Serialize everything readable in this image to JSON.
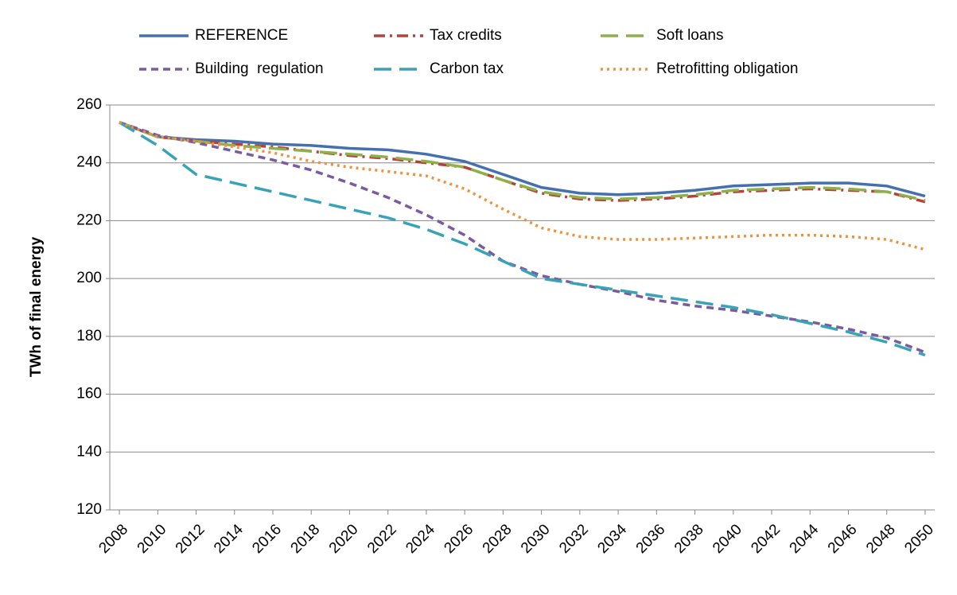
{
  "chart_data": {
    "type": "line",
    "y_label": "TWh of final energy",
    "x": [
      2008,
      2010,
      2012,
      2014,
      2016,
      2018,
      2020,
      2022,
      2024,
      2026,
      2028,
      2030,
      2032,
      2034,
      2036,
      2038,
      2040,
      2042,
      2044,
      2046,
      2048,
      2050
    ],
    "xlim": [
      2007.5,
      2050.5
    ],
    "xticks": [
      2008,
      2010,
      2012,
      2014,
      2016,
      2018,
      2020,
      2022,
      2024,
      2026,
      2028,
      2030,
      2032,
      2034,
      2036,
      2038,
      2040,
      2042,
      2044,
      2046,
      2048,
      2050
    ],
    "ylim": [
      120,
      260
    ],
    "yticks": [
      120,
      140,
      160,
      180,
      200,
      220,
      240,
      260
    ],
    "grid": true,
    "legend": "top",
    "series": [
      {
        "name": "REFERENCE",
        "color": "#4470b0",
        "style": "solid",
        "values": [
          254,
          249,
          248,
          247.5,
          246.5,
          246,
          245,
          244.5,
          243,
          240.5,
          236,
          231.5,
          229.5,
          229,
          229.5,
          230.5,
          232,
          232.5,
          233,
          233,
          232,
          228.5
        ]
      },
      {
        "name": "Tax credits",
        "color": "#b8403a",
        "style": "dashdot",
        "values": [
          254,
          249,
          247.5,
          246.5,
          245.5,
          244,
          242.5,
          241.5,
          240,
          238.5,
          234,
          229.5,
          227.5,
          227,
          227.5,
          228.5,
          230,
          230.5,
          231,
          230.5,
          230,
          226.5
        ]
      },
      {
        "name": "Soft loans",
        "color": "#8db04a",
        "style": "longdash",
        "values": [
          254,
          249,
          247.5,
          246,
          245,
          244,
          243,
          242,
          240.5,
          238.5,
          234,
          230,
          228,
          227.5,
          228,
          229,
          230.5,
          231,
          231.5,
          231,
          230,
          227
        ]
      },
      {
        "name": "Building  regulation",
        "color": "#7a5b9e",
        "style": "dash",
        "values": [
          254,
          249.5,
          247,
          244,
          241,
          237.5,
          233,
          228,
          222,
          215,
          206,
          201,
          198,
          195.5,
          192.5,
          190.5,
          189,
          187,
          185,
          182.5,
          179.5,
          174.5
        ]
      },
      {
        "name": "Carbon tax",
        "color": "#38a3b8",
        "style": "longdash",
        "values": [
          254,
          246,
          236,
          233,
          230,
          227,
          224,
          221,
          217,
          212,
          206,
          200,
          198,
          196,
          194,
          192,
          190,
          187.5,
          184.5,
          181.5,
          178,
          173.5
        ]
      },
      {
        "name": "Retrofitting obligation",
        "color": "#f0913c",
        "style": "dot",
        "values": [
          254,
          249,
          247.5,
          245.5,
          243.5,
          240.5,
          238.5,
          237,
          235.5,
          231,
          224,
          217.5,
          214.5,
          213.5,
          213.5,
          214,
          214.5,
          215,
          215,
          214.5,
          213.5,
          210
        ]
      }
    ]
  }
}
